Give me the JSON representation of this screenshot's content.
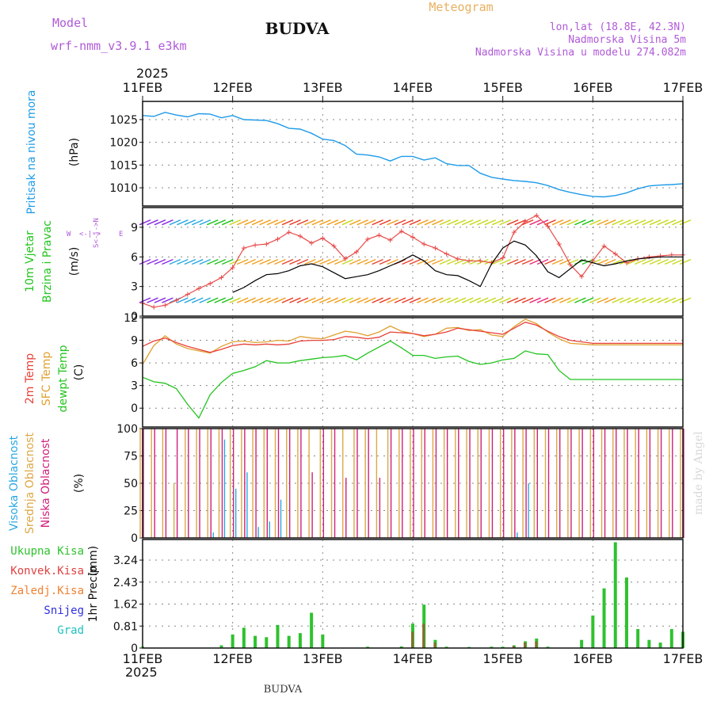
{
  "header": {
    "model_label": "Model",
    "model_name": "wrf-nmm_v3.9.1 e3km",
    "station": "BUDVA",
    "meteogram": "Meteogram",
    "coords": "lon,lat (18.8E, 42.3N)",
    "elevation": "Nadmorska Visina 5m",
    "model_elevation": "Nadmorska Visina u modelu 274.082m",
    "year_top": "2025",
    "year_bottom": "2025",
    "footer_station": "BUDVA",
    "credit": "made by Angel"
  },
  "colors": {
    "pressure": "#1e9be8",
    "wind_speed": "#e84a4a",
    "gust": "#000000",
    "temp2m": "#e8413a",
    "sfc": "#e0a030",
    "dewpt": "#22c41e",
    "high_cloud": "#2aa8e0",
    "mid_cloud": "#dca845",
    "low_cloud": "#d0207a",
    "total_precip": "#2ec22e",
    "conv_precip": "#e04040",
    "frozen_precip": "#f08030",
    "snow": "#3030e0",
    "hail": "#20c0c0",
    "grid": "#888888"
  },
  "chart_data": [
    {
      "type": "line",
      "id": "pressure",
      "ylabel": "Pritisak na nivou mora",
      "unit": "(hPa)",
      "ylim": [
        1006,
        1029
      ],
      "yticks": [
        1010,
        1015,
        1020,
        1025
      ],
      "x": [
        0,
        3,
        6,
        9,
        12,
        15,
        18,
        21,
        24,
        27,
        30,
        33,
        36,
        39,
        42,
        45,
        48,
        51,
        54,
        57,
        60,
        63,
        66,
        69,
        72,
        75,
        78,
        81,
        84,
        87,
        90,
        93,
        96,
        99,
        102,
        105,
        108,
        111,
        114,
        117,
        120,
        123,
        126,
        129,
        132,
        135,
        138,
        141,
        144
      ],
      "values": [
        1025.9,
        1025.7,
        1026.6,
        1026.0,
        1025.6,
        1026.3,
        1026.2,
        1025.4,
        1025.9,
        1025.0,
        1024.9,
        1024.8,
        1024.1,
        1023.1,
        1022.9,
        1022.0,
        1020.7,
        1020.4,
        1019.3,
        1017.4,
        1017.2,
        1016.8,
        1015.9,
        1016.9,
        1016.9,
        1016.1,
        1016.6,
        1015.3,
        1014.9,
        1014.9,
        1013.2,
        1012.3,
        1011.9,
        1011.6,
        1011.4,
        1011.1,
        1010.5,
        1009.6,
        1009.0,
        1008.5,
        1008.1,
        1008.0,
        1008.3,
        1008.9,
        1009.8,
        1010.4,
        1010.6,
        1010.7,
        1010.9
      ]
    },
    {
      "type": "line",
      "id": "wind",
      "ylabel": "10m Vjetar",
      "ylabel2": "Brzina i Pravac",
      "unit": "(m/s)",
      "compass": "N",
      "compass_e": "E",
      "compass_w": "W",
      "compass_s": "S",
      "ylim": [
        0,
        11
      ],
      "yticks": [
        0,
        3,
        6,
        9
      ],
      "series": [
        {
          "name": "speed",
          "x": [
            0,
            3,
            6,
            9,
            12,
            15,
            18,
            21,
            24,
            27,
            30,
            33,
            36,
            39,
            42,
            45,
            48,
            51,
            54,
            57,
            60,
            63,
            66,
            69,
            72,
            75,
            78,
            81,
            84,
            87,
            90,
            93,
            96,
            99,
            102,
            105,
            108,
            111,
            114,
            117,
            120,
            123,
            126,
            129,
            132,
            135,
            138,
            141,
            144
          ],
          "values": [
            1.3,
            0.9,
            1.1,
            1.6,
            2.2,
            2.8,
            3.3,
            3.9,
            4.9,
            6.9,
            7.2,
            7.3,
            7.8,
            8.5,
            8.1,
            7.4,
            7.9,
            7.1,
            5.8,
            6.5,
            7.8,
            8.2,
            7.7,
            8.6,
            8.0,
            7.3,
            6.9,
            6.3,
            5.8,
            5.6,
            5.6,
            5.4,
            5.9,
            8.5,
            9.6,
            10.2,
            9.1,
            7.3,
            5.2,
            4.0,
            5.6,
            7.1,
            6.3,
            5.4,
            5.8,
            6.0,
            6.1,
            6.2,
            6.2
          ]
        },
        {
          "name": "gust",
          "x": [
            24,
            27,
            30,
            33,
            36,
            39,
            42,
            45,
            48,
            51,
            54,
            57,
            60,
            63,
            66,
            69,
            72,
            75,
            78,
            81,
            84,
            87,
            90,
            93,
            96,
            99,
            102,
            105,
            108,
            111,
            114,
            117,
            120,
            123,
            126,
            129,
            132,
            135,
            138,
            141,
            144
          ],
          "values": [
            2.4,
            2.9,
            3.6,
            4.2,
            4.3,
            4.6,
            5.1,
            5.3,
            5.0,
            4.4,
            3.8,
            4.0,
            4.2,
            4.6,
            5.1,
            5.6,
            6.2,
            5.6,
            4.6,
            4.2,
            4.1,
            3.6,
            3.0,
            5.3,
            6.9,
            7.6,
            7.2,
            6.1,
            4.5,
            3.9,
            4.8,
            5.7,
            5.4,
            5.1,
            5.3,
            5.6,
            5.8,
            5.9,
            6.0,
            6.0,
            6.0
          ]
        }
      ],
      "barb_rows": [
        1.6,
        5.5,
        9.5
      ]
    },
    {
      "type": "line",
      "id": "temperature",
      "ylabel": "2m Temp",
      "ylabel2": "SFC Temp",
      "ylabel3": "dewpt Temp",
      "unit": "(C)",
      "ylim": [
        -2.5,
        12
      ],
      "yticks": [
        0,
        3,
        6,
        9,
        12
      ],
      "series": [
        {
          "name": "2m Temp",
          "x": [
            0,
            3,
            6,
            9,
            12,
            15,
            18,
            21,
            24,
            27,
            30,
            33,
            36,
            39,
            42,
            45,
            48,
            51,
            54,
            57,
            60,
            63,
            66,
            69,
            72,
            75,
            78,
            81,
            84,
            87,
            90,
            93,
            96,
            99,
            102,
            105,
            108,
            111,
            114,
            117,
            120,
            123,
            126,
            129,
            132,
            135,
            138,
            141,
            144
          ],
          "values": [
            8.2,
            8.9,
            9.3,
            8.7,
            8.2,
            7.8,
            7.4,
            7.8,
            8.3,
            8.5,
            8.4,
            8.5,
            8.4,
            8.5,
            8.9,
            9.0,
            9.0,
            9.1,
            9.5,
            9.4,
            9.2,
            9.4,
            10.1,
            10.0,
            9.9,
            9.6,
            9.8,
            10.1,
            10.6,
            10.4,
            10.2,
            10.0,
            9.8,
            10.6,
            11.4,
            11.0,
            10.2,
            9.5,
            9.0,
            8.8,
            8.6,
            8.6,
            8.6,
            8.6,
            8.6,
            8.6,
            8.6,
            8.6,
            8.6
          ]
        },
        {
          "name": "SFC Temp",
          "x": [
            0,
            3,
            6,
            9,
            12,
            15,
            18,
            21,
            24,
            27,
            30,
            33,
            36,
            39,
            42,
            45,
            48,
            51,
            54,
            57,
            60,
            63,
            66,
            69,
            72,
            75,
            78,
            81,
            84,
            87,
            90,
            93,
            96,
            99,
            102,
            105,
            108,
            111,
            114,
            117,
            120,
            123,
            126,
            129,
            132,
            135,
            138,
            141,
            144
          ],
          "values": [
            5.8,
            8.3,
            9.6,
            8.5,
            7.9,
            7.6,
            7.3,
            8.2,
            8.8,
            8.9,
            8.7,
            8.8,
            9.0,
            8.9,
            9.5,
            9.3,
            9.2,
            9.7,
            10.2,
            10.0,
            9.6,
            10.1,
            10.9,
            10.2,
            9.9,
            9.5,
            9.8,
            10.6,
            10.7,
            10.3,
            10.4,
            9.7,
            9.5,
            10.8,
            11.8,
            11.2,
            10.1,
            9.2,
            8.6,
            8.5,
            8.4,
            8.4,
            8.4,
            8.4,
            8.4,
            8.4,
            8.4,
            8.4,
            8.4
          ]
        },
        {
          "name": "dewpt Temp",
          "x": [
            0,
            3,
            6,
            9,
            12,
            15,
            18,
            21,
            24,
            27,
            30,
            33,
            36,
            39,
            42,
            45,
            48,
            51,
            54,
            57,
            60,
            63,
            66,
            69,
            72,
            75,
            78,
            81,
            84,
            87,
            90,
            93,
            96,
            99,
            102,
            105,
            108,
            111,
            114,
            117,
            120,
            123,
            126,
            129,
            132,
            135,
            138,
            141,
            144
          ],
          "values": [
            4.1,
            3.5,
            3.3,
            2.6,
            0.5,
            -1.3,
            1.8,
            3.4,
            4.6,
            5.0,
            5.5,
            6.3,
            6.0,
            6.0,
            6.3,
            6.5,
            6.7,
            6.8,
            7.0,
            6.4,
            7.3,
            8.1,
            8.9,
            8.0,
            7.0,
            7.0,
            6.6,
            6.8,
            6.9,
            6.2,
            5.8,
            6.0,
            6.4,
            6.6,
            7.6,
            7.2,
            7.1,
            5.0,
            3.8,
            3.8,
            3.8,
            3.8,
            3.8,
            3.8,
            3.8,
            3.8,
            3.8,
            3.8,
            3.8
          ]
        }
      ]
    },
    {
      "type": "bar",
      "id": "clouds",
      "ylabel": "Visoka Oblacnost",
      "ylabel2": "Srednja Oblacnost",
      "ylabel3": "Niska Oblacnost",
      "unit": "(%)",
      "ylim": [
        0,
        100
      ],
      "yticks": [
        0,
        25,
        50,
        75,
        100
      ],
      "x": [
        0,
        3,
        6,
        9,
        12,
        15,
        18,
        21,
        24,
        27,
        30,
        33,
        36,
        39,
        42,
        45,
        48,
        51,
        54,
        57,
        60,
        63,
        66,
        69,
        72,
        75,
        78,
        81,
        84,
        87,
        90,
        93,
        96,
        99,
        102,
        105,
        108,
        111,
        114,
        117,
        120,
        123,
        126,
        129,
        132,
        135,
        138,
        141,
        144
      ],
      "series": [
        {
          "name": "high",
          "values": [
            0,
            0,
            0,
            0,
            0,
            0,
            5,
            90,
            45,
            60,
            10,
            15,
            35,
            0,
            0,
            0,
            0,
            0,
            0,
            0,
            0,
            0,
            0,
            0,
            0,
            0,
            0,
            0,
            0,
            0,
            0,
            0,
            0,
            5,
            50,
            0,
            0,
            0,
            0,
            0,
            0,
            0,
            0,
            0,
            0,
            0,
            0,
            0,
            0
          ]
        },
        {
          "name": "mid",
          "values": [
            100,
            100,
            100,
            50,
            100,
            100,
            100,
            100,
            100,
            100,
            100,
            100,
            100,
            100,
            100,
            100,
            100,
            100,
            100,
            100,
            100,
            100,
            100,
            100,
            100,
            100,
            100,
            100,
            100,
            100,
            100,
            100,
            100,
            100,
            100,
            100,
            100,
            100,
            100,
            100,
            100,
            100,
            100,
            100,
            100,
            100,
            100,
            100,
            100
          ]
        },
        {
          "name": "low",
          "values": [
            100,
            100,
            100,
            100,
            100,
            100,
            100,
            100,
            100,
            100,
            100,
            100,
            100,
            100,
            100,
            60,
            100,
            100,
            55,
            100,
            100,
            55,
            100,
            100,
            100,
            100,
            100,
            100,
            100,
            100,
            100,
            100,
            100,
            100,
            100,
            100,
            100,
            100,
            100,
            100,
            100,
            100,
            100,
            100,
            100,
            100,
            100,
            100,
            100
          ]
        }
      ]
    },
    {
      "type": "bar",
      "id": "precipitation",
      "ylabel": "1hr Precip",
      "unit": "(mm)",
      "legend": [
        "Ukupna Kisa",
        "Konvek.Kisa",
        "Zaledj.Kisa",
        "Snijeg",
        "Grad"
      ],
      "ylim": [
        0,
        4.0
      ],
      "yticks": [
        0,
        0.81,
        1.62,
        2.43,
        3.24
      ],
      "x": [
        0,
        3,
        6,
        9,
        12,
        15,
        18,
        21,
        24,
        27,
        30,
        33,
        36,
        39,
        42,
        45,
        48,
        51,
        54,
        57,
        60,
        63,
        66,
        69,
        72,
        75,
        78,
        81,
        84,
        87,
        90,
        93,
        96,
        99,
        102,
        105,
        108,
        111,
        114,
        117,
        120,
        123,
        126,
        129,
        132,
        135,
        138,
        141,
        144
      ],
      "series": [
        {
          "name": "Ukupna Kisa",
          "values": [
            0.05,
            0,
            0,
            0,
            0,
            0,
            0,
            0.1,
            0.5,
            0.75,
            0.45,
            0.4,
            0.85,
            0.45,
            0.55,
            1.3,
            0.5,
            0,
            0,
            0,
            0.05,
            0,
            0,
            0.06,
            0.9,
            1.6,
            0.3,
            0.05,
            0,
            0.04,
            0,
            0.05,
            0.05,
            0.1,
            0.25,
            0.35,
            0.05,
            0,
            0,
            0.3,
            1.2,
            2.2,
            3.9,
            2.6,
            0.7,
            0.3,
            0.2,
            0.7,
            0.6
          ]
        },
        {
          "name": "Konvek.Kisa",
          "values": [
            0,
            0,
            0,
            0,
            0,
            0,
            0,
            0,
            0,
            0,
            0,
            0,
            0,
            0,
            0,
            0,
            0,
            0,
            0,
            0,
            0,
            0,
            0,
            0,
            0.6,
            0.9,
            0.2,
            0,
            0,
            0,
            0,
            0,
            0,
            0.08,
            0.2,
            0.25,
            0,
            0,
            0,
            0,
            0,
            0,
            0,
            0,
            0,
            0,
            0,
            0,
            0
          ]
        }
      ]
    }
  ],
  "xaxis": {
    "labels_top": [
      "11FEB",
      "12FEB",
      "13FEB",
      "14FEB",
      "15FEB",
      "16FEB",
      "17FEB"
    ],
    "labels_bottom": [
      "11FEB",
      "12FEB",
      "13FEB",
      "14FEB",
      "15FEB",
      "16FEB",
      "17FEB"
    ],
    "range_hours": [
      0,
      144
    ]
  },
  "legend_wind": [
    "10m Vjetar",
    "Brzina i Pravac"
  ]
}
